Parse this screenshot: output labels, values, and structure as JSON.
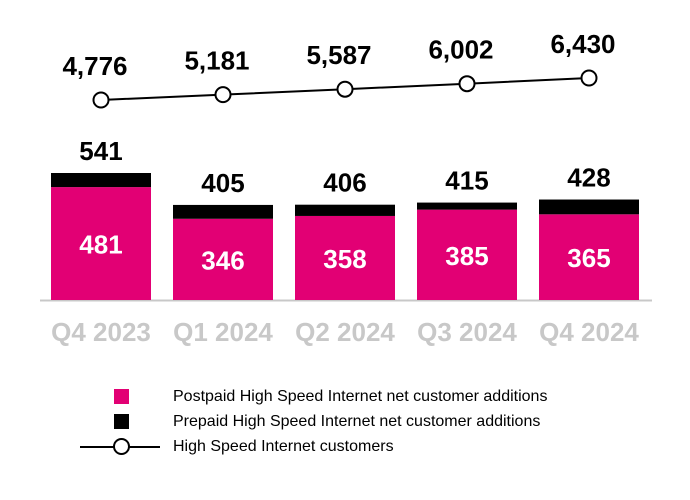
{
  "chart_data": {
    "type": "bar",
    "stacked": true,
    "title": "",
    "xlabel": "",
    "ylabel": "",
    "categories": [
      "Q4 2023",
      "Q1 2024",
      "Q2 2024",
      "Q3 2024",
      "Q4 2024"
    ],
    "series": [
      {
        "name": "Postpaid High Speed Internet net customer additions",
        "kind": "bar",
        "values": [
          481,
          346,
          358,
          385,
          365
        ],
        "value_labels": [
          "481",
          "346",
          "358",
          "385",
          "365"
        ],
        "color": "#e20074"
      },
      {
        "name": "Prepaid High Speed Internet net customer additions",
        "kind": "bar",
        "values": [
          60,
          59,
          48,
          30,
          63
        ],
        "color": "#000000"
      },
      {
        "name": "High Speed Internet customers",
        "kind": "line",
        "values": [
          4776,
          5181,
          5587,
          6002,
          6430
        ],
        "value_labels": [
          "4,776",
          "5,181",
          "5,587",
          "6,002",
          "6,430"
        ],
        "color": "#000000"
      }
    ],
    "totals": [
      541,
      405,
      406,
      415,
      428
    ],
    "total_labels": [
      "541",
      "405",
      "406",
      "415",
      "428"
    ],
    "bar_ylim": [
      0,
      541
    ],
    "line_ylim": [
      4776,
      6430
    ],
    "grid": false,
    "legend_position": "bottom"
  },
  "colors": {
    "postpaid": "#e20074",
    "prepaid": "#000000",
    "axis_label": "#c8c8c8",
    "baseline": "#c8c8c8",
    "text": "#000000"
  },
  "legend": {
    "items": [
      "Postpaid High Speed Internet net customer additions",
      "Prepaid High Speed Internet net customer additions",
      "High Speed Internet customers"
    ]
  }
}
